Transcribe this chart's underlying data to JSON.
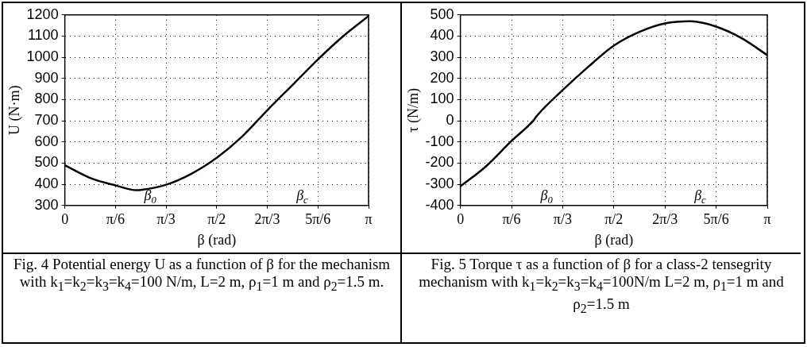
{
  "chart_data": [
    {
      "type": "line",
      "xlabel": "β (rad)",
      "ylabel": "U (N·m)",
      "x": [
        0,
        0.2618,
        0.5236,
        0.745,
        0.7854,
        1.0472,
        1.309,
        1.5708,
        1.8326,
        2.0944,
        2.3562,
        2.618,
        2.8798,
        3.1416
      ],
      "series": [
        {
          "color": "#000000",
          "values": [
            490,
            430,
            395,
            372,
            373,
            398,
            450,
            525,
            625,
            750,
            870,
            990,
            1100,
            1195
          ]
        }
      ],
      "xlim": [
        0,
        3.1416
      ],
      "xticks": [
        {
          "value": 0,
          "label": "0"
        },
        {
          "value": 0.5236,
          "label": "π/6"
        },
        {
          "value": 1.0472,
          "label": "π/3"
        },
        {
          "value": 1.5708,
          "label": "π/2"
        },
        {
          "value": 2.0944,
          "label": "2π/3"
        },
        {
          "value": 2.618,
          "label": "5π/6"
        },
        {
          "value": 3.1416,
          "label": "π"
        }
      ],
      "ylim": [
        300,
        1200
      ],
      "yticks": [
        300,
        400,
        500,
        600,
        700,
        800,
        900,
        1000,
        1100,
        1200
      ],
      "grid": true,
      "legend": false,
      "marker": "none",
      "line_style": "solid",
      "title": "Fig. 4 Potential energy U as a function of β for the mechanism with k$_{1}$=k$_{2}$=k$_{3}$=k$_{4}$=100 N/m, L=2 m, ρ$_{1}$=1 m and ρ$_{2}$=1.5 m.",
      "annotations": [
        "β$_{0}$",
        "β$_{c}$"
      ]
    },
    {
      "type": "line",
      "xlabel": "β (rad)",
      "ylabel": "τ (N/m)",
      "x": [
        0,
        0.2618,
        0.5236,
        0.745,
        0.7854,
        1.0472,
        1.309,
        1.5708,
        1.8326,
        2.0944,
        2.3562,
        2.618,
        2.8798,
        3.1416
      ],
      "series": [
        {
          "color": "#000000",
          "values": [
            -310,
            -215,
            -95,
            0,
            25,
            145,
            255,
            355,
            420,
            460,
            470,
            445,
            390,
            310
          ]
        }
      ],
      "xlim": [
        0,
        3.1416
      ],
      "xticks": [
        {
          "value": 0,
          "label": "0"
        },
        {
          "value": 0.5236,
          "label": "π/6"
        },
        {
          "value": 1.0472,
          "label": "π/3"
        },
        {
          "value": 1.5708,
          "label": "π/2"
        },
        {
          "value": 2.0944,
          "label": "2π/3"
        },
        {
          "value": 2.618,
          "label": "5π/6"
        },
        {
          "value": 3.1416,
          "label": "π"
        }
      ],
      "ylim": [
        -400,
        500
      ],
      "yticks": [
        -400,
        -300,
        -200,
        -100,
        0,
        100,
        200,
        300,
        400,
        500
      ],
      "grid": true,
      "legend": false,
      "marker": "none",
      "line_style": "solid",
      "title": "Fig. 5 Torque τ as a function of β for a class-2 tensegrity mechanism with k$_{1}$=k$_{2}$=k$_{3}$=k$_{4}$=100N/m  L=2 m, ρ$_{1}$=1 m and ρ$_{2}$=1.5 m",
      "annotations": [
        "β$_{0}$",
        "β$_{c}$"
      ]
    }
  ]
}
